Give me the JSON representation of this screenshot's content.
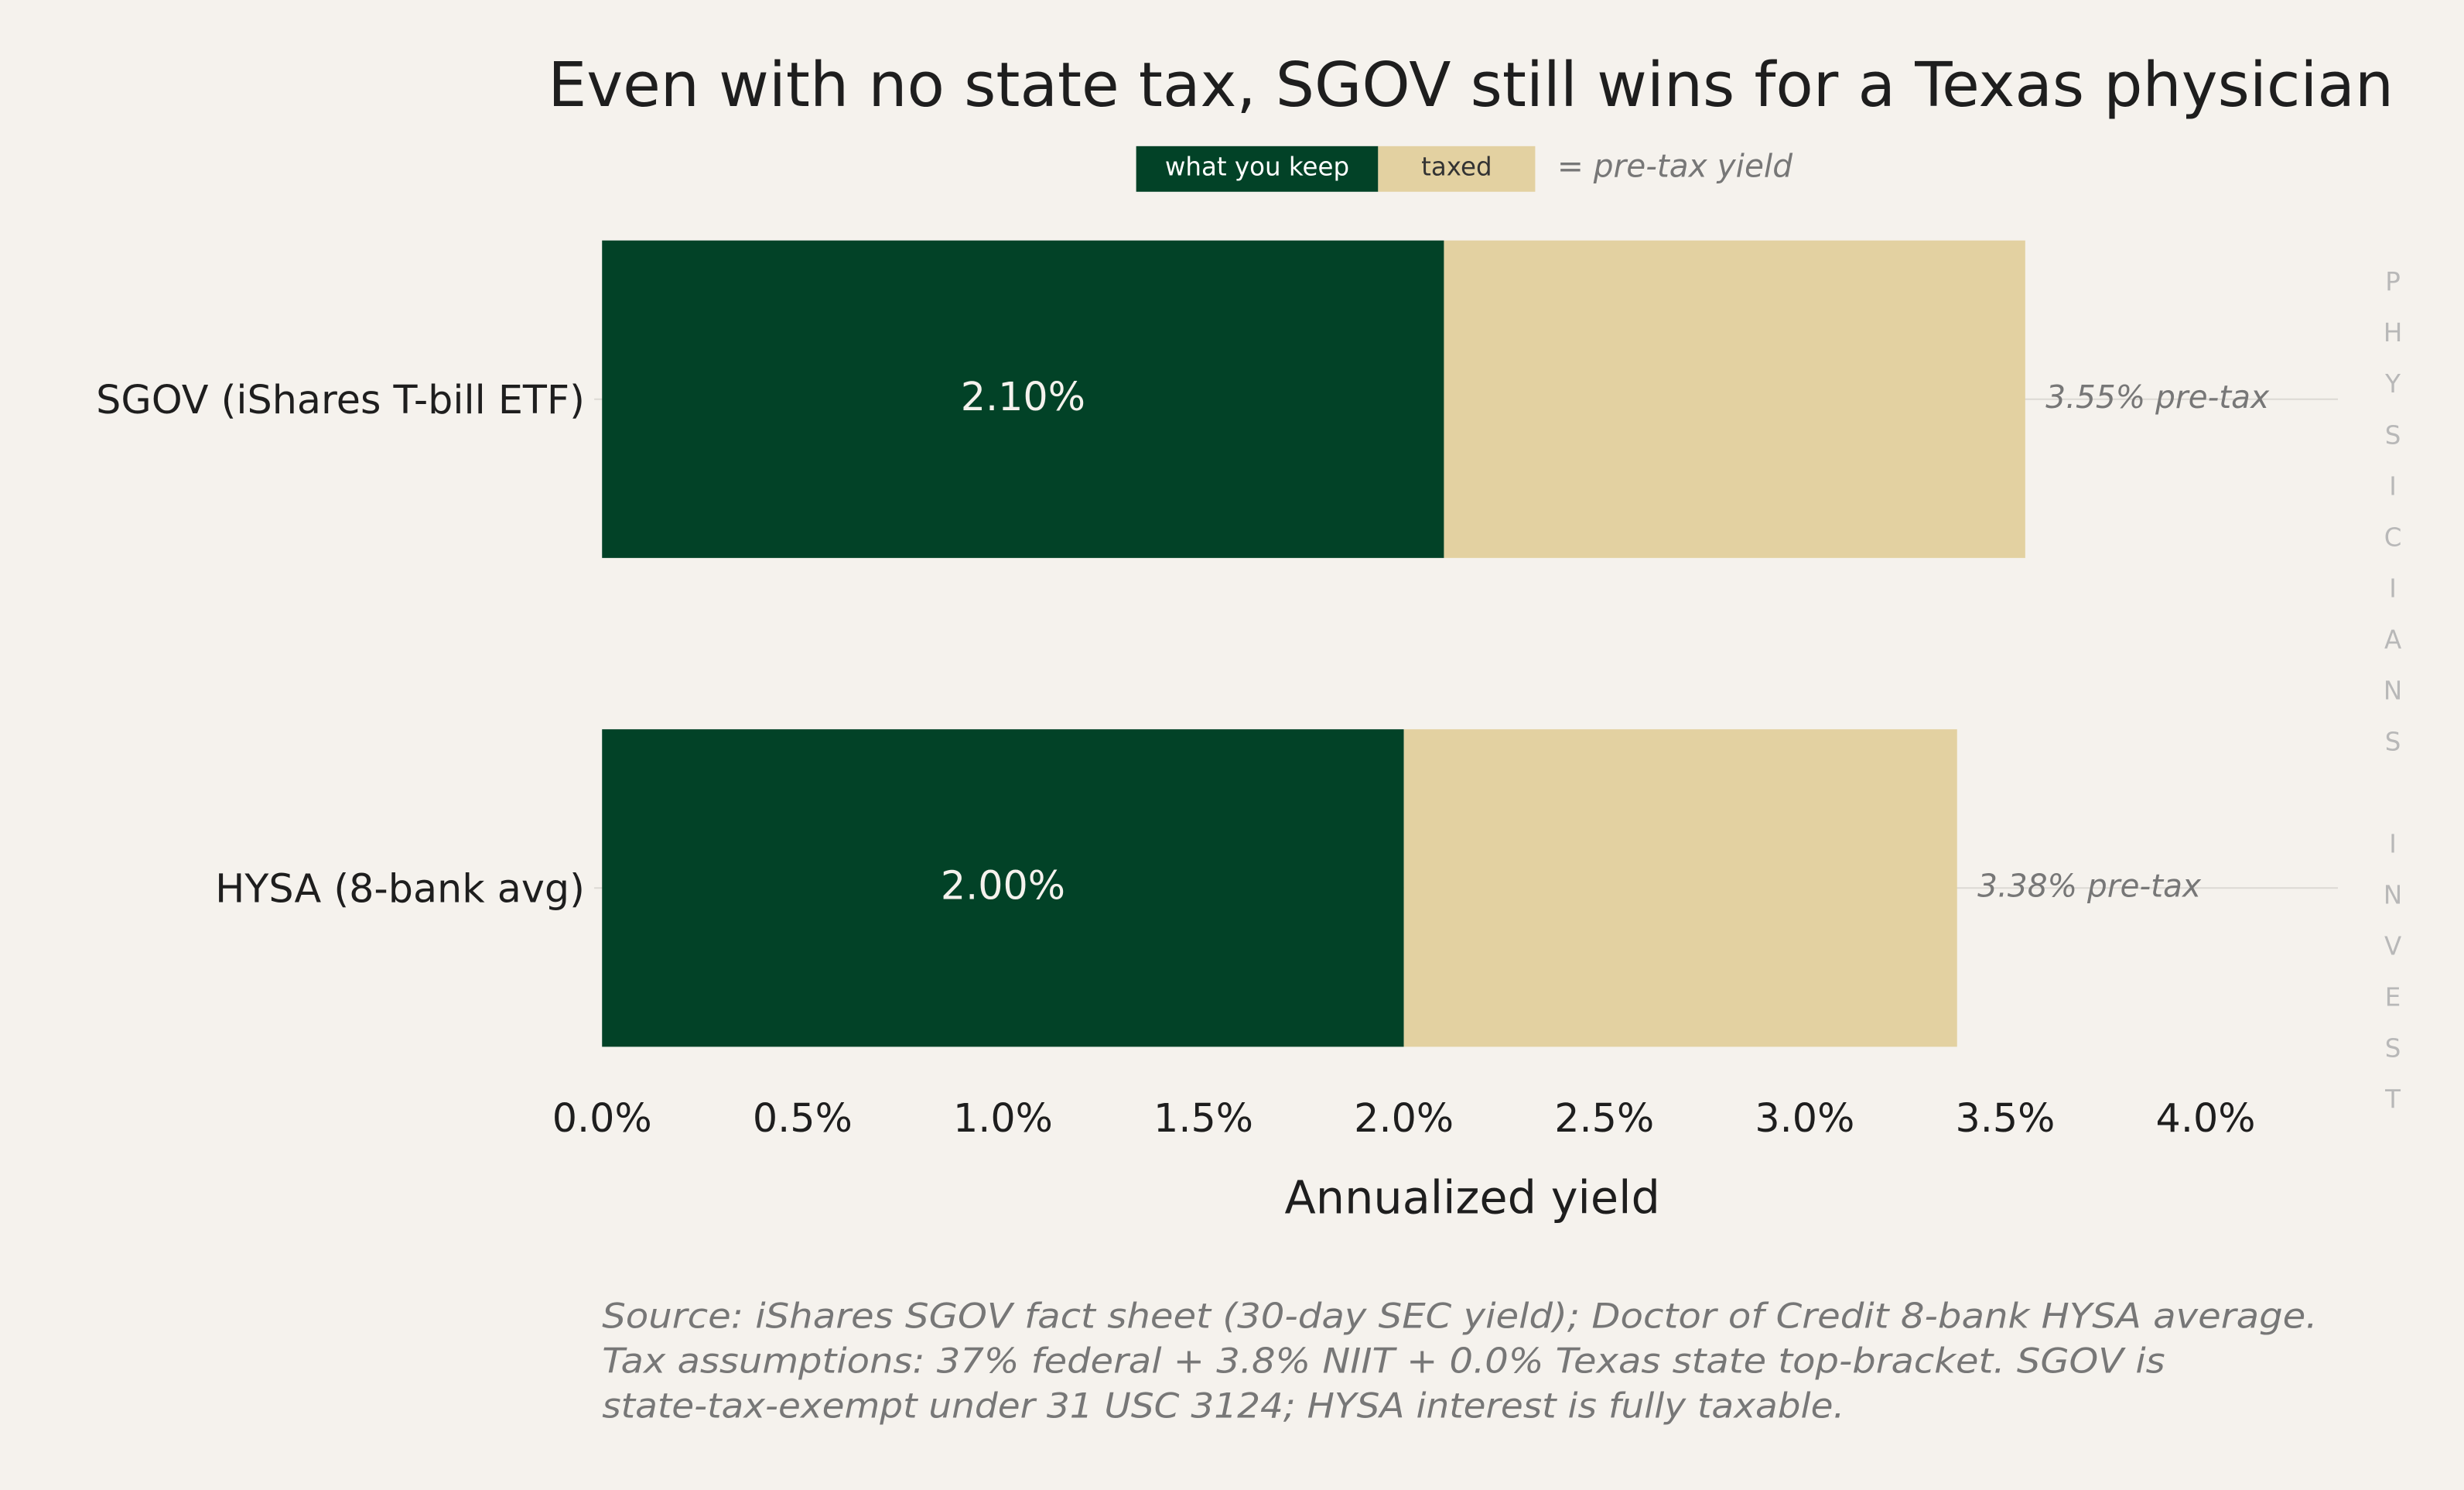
{
  "chart_data": {
    "type": "hbar_stacked",
    "title": "Even with no state tax, SGOV still wins for a Texas physician",
    "categories": [
      "SGOV (iShares T-bill ETF)",
      "HYSA (8-bank avg)"
    ],
    "series": [
      {
        "name": "what you keep",
        "color": "#024227",
        "values": [
          2.1,
          2.0
        ],
        "value_labels": [
          "2.10%",
          "2.00%"
        ]
      },
      {
        "name": "taxed",
        "color": "#e3d1a1",
        "values": [
          1.45,
          1.38
        ]
      }
    ],
    "pre_tax": {
      "values": [
        3.55,
        3.38
      ],
      "value_labels": [
        "3.55% pre-tax",
        "3.38% pre-tax"
      ]
    },
    "legend_note": "= pre-tax yield",
    "xlabel": "Annualized yield",
    "xlim": [
      0,
      4.33
    ],
    "xticks": [
      {
        "value": 0,
        "label": "0.0%"
      },
      {
        "value": 0.5,
        "label": "0.5%"
      },
      {
        "value": 1,
        "label": "1.0%"
      },
      {
        "value": 1.5,
        "label": "1.5%"
      },
      {
        "value": 2,
        "label": "2.0%"
      },
      {
        "value": 2.5,
        "label": "2.5%"
      },
      {
        "value": 3,
        "label": "3.0%"
      },
      {
        "value": 3.5,
        "label": "3.5%"
      },
      {
        "value": 4,
        "label": "4.0%"
      }
    ],
    "watermark": "PHYSICIANS INVEST",
    "notes": [
      "Source: iShares SGOV fact sheet (30-day SEC yield); Doctor of Credit 8-bank HYSA average.",
      "Tax assumptions: 37% federal + 3.8% NIIT + 0.0% Texas state top-bracket. SGOV is",
      "state-tax-exempt under 31 USC 3124; HYSA interest is fully taxable."
    ]
  }
}
